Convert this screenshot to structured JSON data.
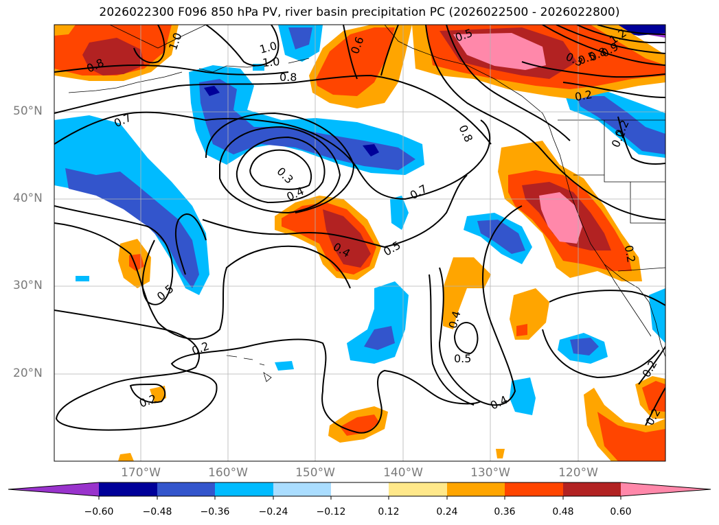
{
  "title": "2026022300 F096 850 hPa PV, river basin precipitation PC (2026022500 - 2026022800)",
  "map": {
    "lat_labels": [
      {
        "value": 50,
        "text": "50°N"
      },
      {
        "value": 40,
        "text": "40°N"
      },
      {
        "value": 30,
        "text": "30°N"
      },
      {
        "value": 20,
        "text": "20°N"
      }
    ],
    "lon_labels": [
      {
        "value": -170,
        "text": "170°W"
      },
      {
        "value": -160,
        "text": "160°W"
      },
      {
        "value": -150,
        "text": "150°W"
      },
      {
        "value": -140,
        "text": "140°W"
      },
      {
        "value": -130,
        "text": "130°W"
      },
      {
        "value": -120,
        "text": "120°W"
      }
    ],
    "contour_labels": [
      "0.8",
      "1.0",
      "1.0",
      "1.0",
      "0.8",
      "0.7",
      "0.6",
      "0.5",
      "1.2",
      "0.9",
      "0.8",
      "0.5",
      "0.3",
      "0.2",
      "0.2",
      "0.3",
      "0.4",
      "0.8",
      "0.7",
      "0.5",
      "0.4",
      "0.5",
      "0.2",
      "0.2",
      "0.4",
      "0.5",
      "0.4",
      "0.2",
      "0.2",
      "0.2",
      "0.2"
    ]
  },
  "colorbar": {
    "colors": [
      "#9933cc",
      "#000099",
      "#3355cc",
      "#00bbff",
      "#aaddff",
      "#ffffff",
      "#ffe88a",
      "#ffa500",
      "#ff4500",
      "#b22222",
      "#ff88aa"
    ],
    "ticks": [
      "−0.60",
      "−0.48",
      "−0.36",
      "−0.24",
      "−0.12",
      "0.12",
      "0.24",
      "0.36",
      "0.48",
      "0.60"
    ]
  }
}
